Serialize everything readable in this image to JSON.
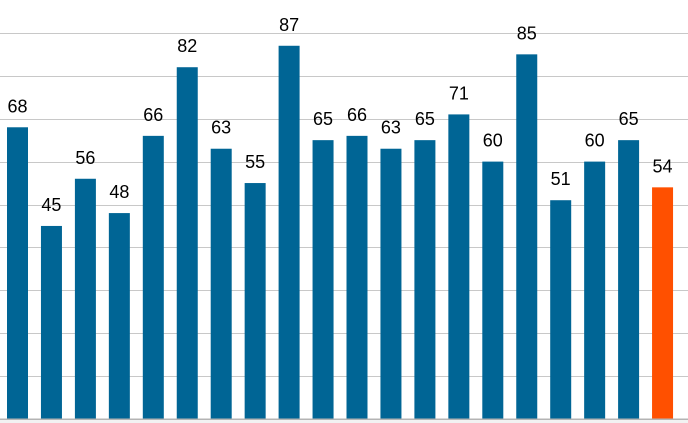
{
  "chart_data": {
    "type": "bar",
    "title": "",
    "xlabel": "",
    "ylabel": "",
    "ylim": [
      0,
      90
    ],
    "grid": true,
    "legend": "none",
    "values": [
      68,
      45,
      56,
      48,
      66,
      82,
      63,
      55,
      87,
      65,
      66,
      63,
      65,
      71,
      60,
      85,
      51,
      60,
      65,
      54
    ],
    "data_labels": [
      "68",
      "45",
      "56",
      "48",
      "66",
      "82",
      "63",
      "55",
      "87",
      "65",
      "66",
      "63",
      "65",
      "71",
      "60",
      "85",
      "51",
      "60",
      "65",
      "54"
    ],
    "colors": {
      "default": "#006595",
      "highlight": "#ff5000"
    },
    "highlight_index": 19
  }
}
